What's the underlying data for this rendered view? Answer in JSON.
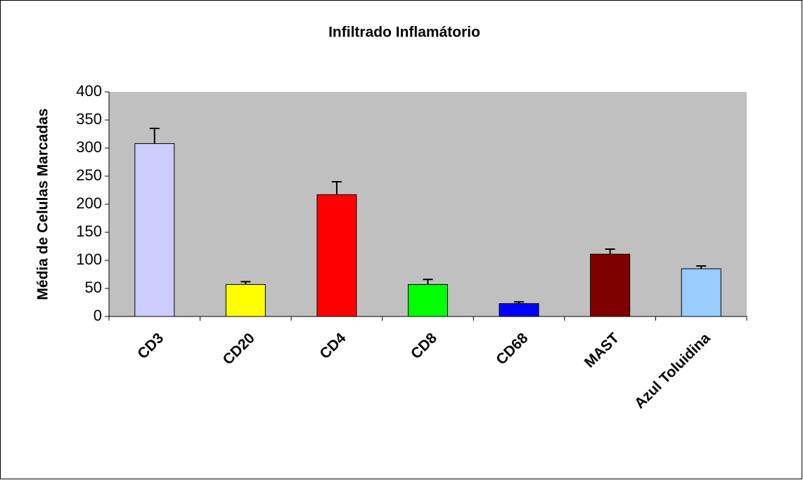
{
  "chart_data": {
    "type": "bar",
    "title": "Infiltrado Inflamátorio",
    "y_label": "Média de Celulas Marcadas",
    "categories": [
      "CD3",
      "CD20",
      "CD4",
      "CD8",
      "CD68",
      "MAST",
      "Azul Toluidina"
    ],
    "values": [
      308,
      57,
      217,
      57,
      23,
      111,
      85
    ],
    "errors": [
      27,
      5,
      23,
      9,
      3,
      9,
      5
    ],
    "colors": [
      "#ccccff",
      "#ffff00",
      "#ff0000",
      "#00ff00",
      "#0000ff",
      "#800000",
      "#99ccff"
    ],
    "ylim": [
      0,
      400
    ],
    "yticks": [
      0,
      50,
      100,
      150,
      200,
      250,
      300,
      350,
      400
    ],
    "grid": false
  }
}
